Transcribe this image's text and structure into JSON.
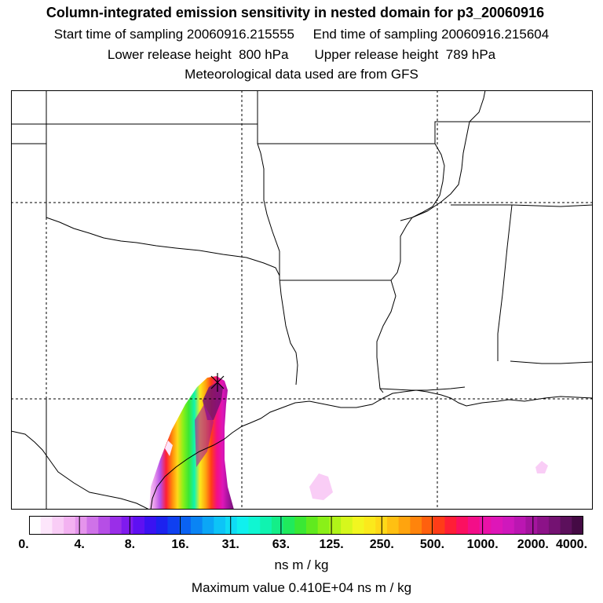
{
  "header": {
    "title": "Column-integrated emission sensitivity in nested domain for p3_20060916",
    "start_label": "Start time of sampling 20060916.215555",
    "end_label": "End time of sampling 20060916.215604",
    "lower_label": "Lower release height  800 hPa",
    "upper_label": "Upper release height  789 hPa",
    "met_label": "Meteorological data used are from GFS"
  },
  "legend": {
    "ticks": [
      "0.",
      "4.",
      "8.",
      "16.",
      "31.",
      "63.",
      "125.",
      "250.",
      "500.",
      "1000.",
      "2000.",
      "4000."
    ],
    "colors": [
      "#ffffff",
      "#fde6fb",
      "#f9cdf6",
      "#f3b2f1",
      "#e594ec",
      "#cf72e8",
      "#b64ee6",
      "#9a2ee8",
      "#7f1bee",
      "#5e10f2",
      "#3a12f2",
      "#1c22ef",
      "#0f40f0",
      "#0a62f2",
      "#0a84f4",
      "#0ba6f6",
      "#0dc4f7",
      "#0fdcf5",
      "#10f0ee",
      "#10f6d2",
      "#10f3b0",
      "#14ee88",
      "#20ea5c",
      "#3ae834",
      "#60ea1e",
      "#8af018",
      "#b0f418",
      "#d6f71c",
      "#f2f620",
      "#fbe91c",
      "#ffd818",
      "#ffc012",
      "#ffa40e",
      "#ff840c",
      "#ff600e",
      "#ff3c18",
      "#ff1e36",
      "#fb1060",
      "#f30e88",
      "#ea12a8",
      "#de16b8",
      "#cf18bc",
      "#bb16b2",
      "#a4149e",
      "#8c1288",
      "#741272",
      "#5c105c",
      "#440a44"
    ],
    "units": "ns m / kg",
    "max_value_text": "Maximum value  0.410E+04 ns m / kg"
  },
  "map": {
    "plume_colors": [
      "#f9cdf6",
      "#e594ec",
      "#b64ee6",
      "#ff1e36",
      "#ff840c",
      "#ffd818",
      "#8af018",
      "#3ae834",
      "#10f3b0",
      "#fbe91c",
      "#ffa40e",
      "#ff3c18",
      "#f30e88",
      "#de16b8",
      "#a4149e",
      "#741272"
    ],
    "release_marker": "star-marker"
  }
}
